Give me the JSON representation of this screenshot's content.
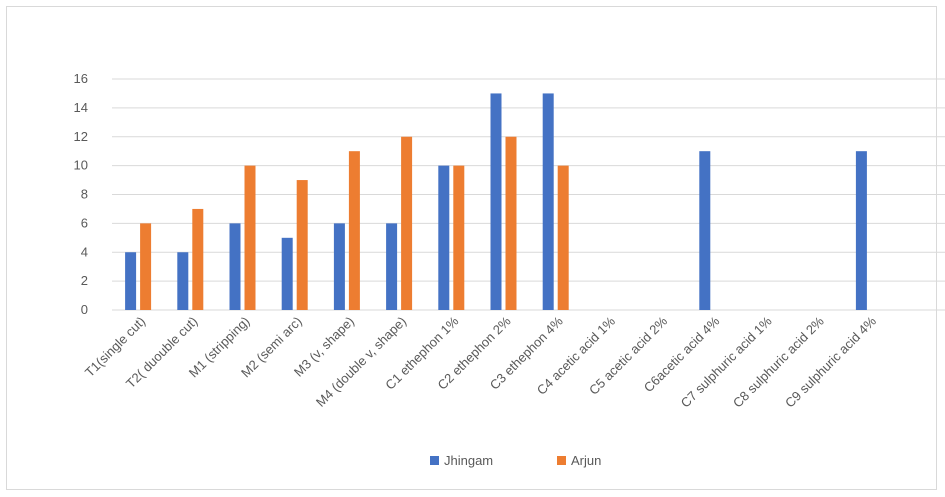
{
  "chart_data": {
    "type": "bar",
    "title": "",
    "xlabel": "",
    "ylabel": "",
    "ylim": [
      0,
      16
    ],
    "yticks": [
      0,
      2,
      4,
      6,
      8,
      10,
      12,
      14,
      16
    ],
    "grid": true,
    "legend_position": "bottom",
    "categories": [
      "T1(single cut)",
      "T2( duouble cut)",
      "M1 (stripping)",
      "M2 (semi arc)",
      "M3 (v, shape)",
      "M4 (double v, shape)",
      "C1 ethephon 1%",
      "C2 ethephon 2%",
      "C3 ethephon 4%",
      "C4 acetic acid 1%",
      "C5 acetic acid 2%",
      "C6acetic acid 4%",
      "C7 sulphuric acid 1%",
      "C8 sulphuric acid 2%",
      "C9 sulphuric acid 4%"
    ],
    "series": [
      {
        "name": "Jhingam",
        "color": "#4472c4",
        "values": [
          4,
          4,
          6,
          5,
          6,
          6,
          10,
          15,
          15,
          null,
          null,
          11,
          null,
          null,
          11
        ]
      },
      {
        "name": "Arjun",
        "color": "#ed7d31",
        "values": [
          6,
          7,
          10,
          9,
          11,
          12,
          10,
          12,
          10,
          null,
          null,
          null,
          null,
          null,
          null
        ]
      }
    ]
  }
}
